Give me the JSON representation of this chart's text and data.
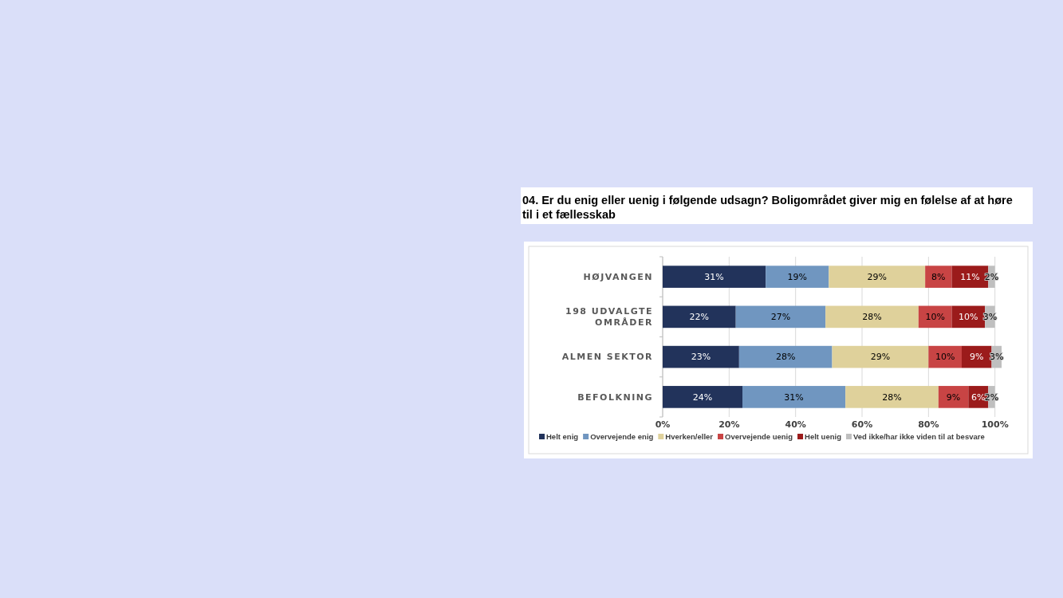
{
  "chart_data": {
    "type": "bar",
    "orientation": "horizontal",
    "stacked": true,
    "title": "04. Er du enig eller uenig i følgende udsagn? Boligområdet giver mig en følelse af at høre til i et fællesskab",
    "categories": [
      "HØJVANGEN",
      "198 UDVALGTE OMRÅDER",
      "ALMEN SEKTOR",
      "BEFOLKNING"
    ],
    "series": [
      {
        "name": "Helt enig",
        "color": "#22335b",
        "values": [
          31,
          22,
          23,
          24
        ],
        "value_labels": [
          "31%",
          "22%",
          "23%",
          "24%"
        ]
      },
      {
        "name": "Overvejende enig",
        "color": "#7096c0",
        "values": [
          19,
          27,
          28,
          31
        ],
        "value_labels": [
          "19%",
          "27%",
          "28%",
          "31%"
        ]
      },
      {
        "name": "Hverken/eller",
        "color": "#dfd19b",
        "values": [
          29,
          28,
          29,
          28
        ],
        "value_labels": [
          "29%",
          "28%",
          "29%",
          "28%"
        ]
      },
      {
        "name": "Overvejende uenig",
        "color": "#c84444",
        "values": [
          8,
          10,
          10,
          9
        ],
        "value_labels": [
          "8%",
          "10%",
          "10%",
          "9%"
        ]
      },
      {
        "name": "Helt uenig",
        "color": "#9b1b1b",
        "values": [
          11,
          10,
          9,
          6
        ],
        "value_labels": [
          "11%",
          "10%",
          "9%",
          "6%"
        ]
      },
      {
        "name": "Ved ikke/har ikke viden til at besvare",
        "color": "#bfbfbf",
        "values": [
          2,
          3,
          3,
          2
        ],
        "value_labels": [
          "2%",
          "3%",
          "3%",
          "2%"
        ]
      }
    ],
    "xlim": [
      0,
      102
    ],
    "xticks": [
      {
        "value": 0,
        "label": "0%"
      },
      {
        "value": 20,
        "label": "20%"
      },
      {
        "value": 40,
        "label": "40%"
      },
      {
        "value": 60,
        "label": "60%"
      },
      {
        "value": 80,
        "label": "80%"
      },
      {
        "value": 100,
        "label": "100%"
      }
    ],
    "grid": "x",
    "legend": "bottom"
  }
}
